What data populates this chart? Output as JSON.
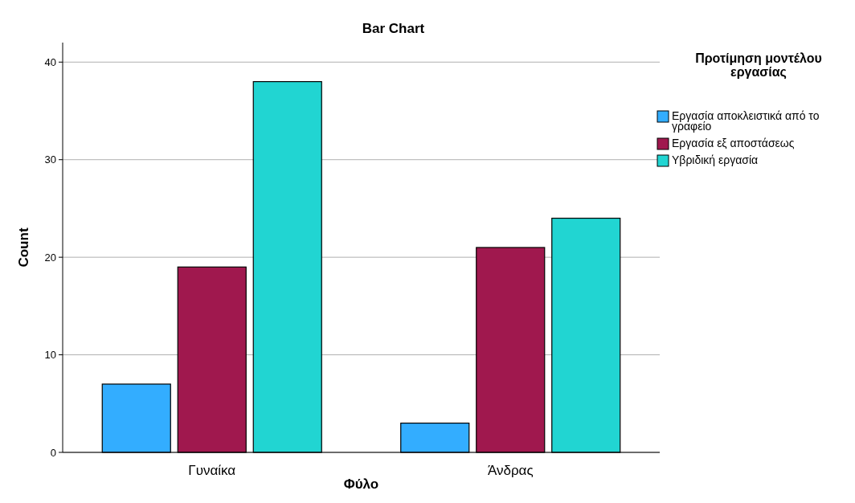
{
  "chart_data": {
    "type": "bar",
    "title": "Bar Chart",
    "xlabel": "Φύλο",
    "ylabel": "Count",
    "legend_title": "Προτίμηση μοντέλου εργασίας",
    "categories": [
      "Γυναίκα",
      "Άνδρας"
    ],
    "series": [
      {
        "name": "Εργασία αποκλειστικά από το γραφείο",
        "color": "#33adff",
        "values": [
          7,
          3
        ]
      },
      {
        "name": "Εργασία εξ αποστάσεως",
        "color": "#a0184e",
        "values": [
          19,
          21
        ]
      },
      {
        "name": "Υβριδική εργασία",
        "color": "#21d5d2",
        "values": [
          38,
          24
        ]
      }
    ],
    "ylim": [
      0,
      42
    ],
    "yticks": [
      0,
      10,
      20,
      30,
      40
    ],
    "grid": "y",
    "legend": "right"
  }
}
